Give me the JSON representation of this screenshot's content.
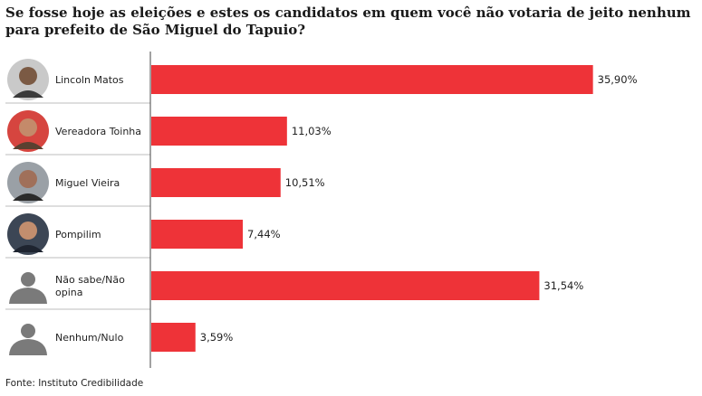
{
  "title": "Se fosse hoje as eleições e estes os candidatos em quem você não votaria de jeito nenhum para prefeito de São Miguel do Tapuio?",
  "source": "Fonte: Instituto Credibilidade",
  "colors": {
    "bar": "#ee3338",
    "avatar_placeholder": "#7a7a7a",
    "axis": "#444444",
    "separator": "#bdbdbd"
  },
  "chart_data": {
    "type": "bar",
    "orientation": "horizontal",
    "categories": [
      "Lincoln Matos",
      "Vereadora Toinha",
      "Miguel Vieira",
      "Pompilim",
      "Não sabe/Não opina",
      "Nenhum/Nulo"
    ],
    "category_lines": [
      [
        "Lincoln Matos"
      ],
      [
        "Vereadora Toinha"
      ],
      [
        "Miguel Vieira"
      ],
      [
        "Pompilim"
      ],
      [
        "Não sabe/Não",
        "opina"
      ],
      [
        "Nenhum/Nulo"
      ]
    ],
    "values": [
      35.9,
      11.03,
      10.51,
      7.44,
      31.54,
      3.59
    ],
    "value_labels": [
      "35,90%",
      "11,03%",
      "10,51%",
      "7,44%",
      "31,54%",
      "3,59%"
    ],
    "avatars": [
      "photo-man-glasses",
      "photo-woman-red",
      "photo-man-bald",
      "photo-man-suit",
      "silhouette",
      "silhouette"
    ],
    "xlim": [
      0,
      36
    ],
    "grid": false,
    "legend": "none"
  }
}
